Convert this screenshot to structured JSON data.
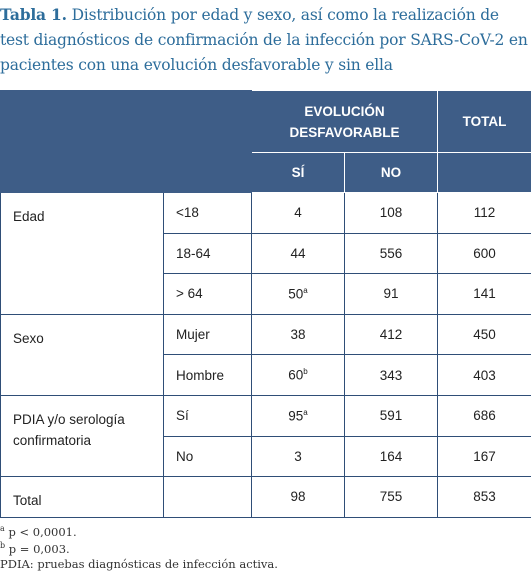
{
  "title": {
    "label": "Tabla 1.",
    "text": "Distribución por edad y sexo, así como la realización de test diagnósticos de confirmación de la infección por SARS-CoV-2 en pacientes con una evolución desfavorable y sin ella"
  },
  "table": {
    "header": {
      "group": "EVOLUCIÓN DESFAVORABLE",
      "total": "TOTAL",
      "si": "SÍ",
      "no": "NO"
    },
    "groups": [
      {
        "label": "Edad",
        "rows": [
          {
            "sub": "<18",
            "si": 4,
            "no": 108,
            "total": 112
          },
          {
            "sub": "18-64",
            "si": 44,
            "no": 556,
            "total": 600
          },
          {
            "sub": "> 64",
            "si": 50,
            "si_note": "a",
            "no": 91,
            "total": 141
          }
        ]
      },
      {
        "label": "Sexo",
        "rows": [
          {
            "sub": "Mujer",
            "si": 38,
            "no": 412,
            "total": 450
          },
          {
            "sub": "Hombre",
            "si": 60,
            "si_note": "b",
            "no": 343,
            "total": 403
          }
        ]
      },
      {
        "label": "PDIA y/o serología confirmatoria",
        "rows": [
          {
            "sub": "Sí",
            "si": 95,
            "si_note": "a",
            "no": 591,
            "total": 686
          },
          {
            "sub": "No",
            "si": 3,
            "no": 164,
            "total": 167
          }
        ]
      },
      {
        "label": "Total",
        "rows": [
          {
            "si": 98,
            "no": 755,
            "total": 853
          }
        ]
      }
    ]
  },
  "footnotes": [
    {
      "mark": "a",
      "text": "p < 0,0001."
    },
    {
      "mark": "b",
      "text": "p = 0,003."
    },
    {
      "text": "PDIA: pruebas diagnósticas de infección activa."
    }
  ]
}
